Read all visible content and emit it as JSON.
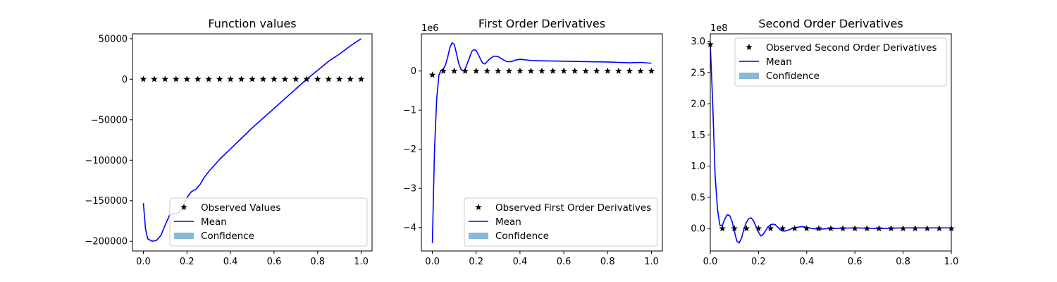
{
  "chart_data": [
    {
      "type": "line",
      "title": "Function values",
      "xlabel": "",
      "ylabel": "",
      "xlim": [
        -0.05,
        1.05
      ],
      "ylim": [
        -212000,
        56000
      ],
      "xticks": [
        0.0,
        0.2,
        0.4,
        0.6,
        0.8,
        1.0
      ],
      "xtick_labels": [
        "0.0",
        "0.2",
        "0.4",
        "0.6",
        "0.8",
        "1.0"
      ],
      "yticks": [
        50000,
        0,
        -50000,
        -100000,
        -150000,
        -200000
      ],
      "ytick_labels": [
        "50000",
        "0",
        "−50000",
        "−100000",
        "−150000",
        "−200000"
      ],
      "offset_label": "",
      "legend_position": "lower-right",
      "legend": [
        "Observed Values",
        "Mean",
        "Confidence"
      ],
      "series": [
        {
          "name": "Observed Values",
          "kind": "markers",
          "x": [
            0.0,
            0.05,
            0.1,
            0.15,
            0.2,
            0.25,
            0.3,
            0.35,
            0.4,
            0.45,
            0.5,
            0.55,
            0.6,
            0.65,
            0.7,
            0.75,
            0.8,
            0.85,
            0.9,
            0.95,
            1.0
          ],
          "y": [
            0,
            0,
            0,
            0,
            0,
            0,
            0,
            0,
            0,
            0,
            0,
            0,
            0,
            0,
            0,
            0,
            0,
            0,
            0,
            0,
            0
          ]
        },
        {
          "name": "Mean",
          "kind": "line",
          "x": [
            0.0,
            0.01,
            0.02,
            0.04,
            0.06,
            0.08,
            0.1,
            0.12,
            0.14,
            0.16,
            0.18,
            0.2,
            0.22,
            0.24,
            0.26,
            0.28,
            0.3,
            0.32,
            0.35,
            0.4,
            0.45,
            0.5,
            0.55,
            0.6,
            0.65,
            0.7,
            0.75,
            0.8,
            0.85,
            0.9,
            0.95,
            1.0
          ],
          "y": [
            -153000,
            -185000,
            -197000,
            -200000,
            -199000,
            -193000,
            -180000,
            -168000,
            -166000,
            -165000,
            -158000,
            -146000,
            -139000,
            -136000,
            -130000,
            -121000,
            -114000,
            -108000,
            -99000,
            -86000,
            -73000,
            -60000,
            -48000,
            -36000,
            -24000,
            -12000,
            0,
            11000,
            22000,
            31000,
            41000,
            50000
          ]
        }
      ]
    },
    {
      "type": "line",
      "title": "First Order Derivatives",
      "xlabel": "",
      "ylabel": "",
      "xlim": [
        -0.05,
        1.05
      ],
      "ylim": [
        -4.6,
        0.95
      ],
      "xticks": [
        0.0,
        0.2,
        0.4,
        0.6,
        0.8,
        1.0
      ],
      "xtick_labels": [
        "0.0",
        "0.2",
        "0.4",
        "0.6",
        "0.8",
        "1.0"
      ],
      "yticks": [
        0,
        -1,
        -2,
        -3,
        -4
      ],
      "ytick_labels": [
        "0",
        "−1",
        "−2",
        "−3",
        "−4"
      ],
      "offset_label": "1e6",
      "legend_position": "lower-right",
      "legend": [
        "Observed First Order Derivatives",
        "Mean",
        "Confidence"
      ],
      "series": [
        {
          "name": "Observed First Order Derivatives",
          "kind": "markers",
          "x": [
            0.0,
            0.05,
            0.1,
            0.15,
            0.2,
            0.25,
            0.3,
            0.35,
            0.4,
            0.45,
            0.5,
            0.55,
            0.6,
            0.65,
            0.7,
            0.75,
            0.8,
            0.85,
            0.9,
            0.95,
            1.0
          ],
          "y": [
            -0.1,
            0,
            0,
            0,
            0,
            0,
            0,
            0,
            0,
            0,
            0,
            0,
            0,
            0,
            0,
            0,
            0,
            0,
            0,
            0,
            0
          ]
        },
        {
          "name": "Mean",
          "kind": "line",
          "x": [
            0.0,
            0.01,
            0.02,
            0.03,
            0.04,
            0.05,
            0.06,
            0.07,
            0.08,
            0.09,
            0.1,
            0.11,
            0.12,
            0.13,
            0.14,
            0.15,
            0.16,
            0.17,
            0.18,
            0.19,
            0.2,
            0.21,
            0.22,
            0.23,
            0.24,
            0.26,
            0.28,
            0.3,
            0.32,
            0.34,
            0.36,
            0.38,
            0.4,
            0.45,
            0.5,
            0.6,
            0.7,
            0.8,
            0.85,
            0.9,
            0.95,
            1.0
          ],
          "y": [
            -4.4,
            -2.0,
            -0.7,
            -0.1,
            0.02,
            0.05,
            0.15,
            0.35,
            0.6,
            0.72,
            0.68,
            0.45,
            0.2,
            0.05,
            0.0,
            0.05,
            0.2,
            0.35,
            0.5,
            0.55,
            0.52,
            0.42,
            0.3,
            0.2,
            0.18,
            0.3,
            0.38,
            0.37,
            0.3,
            0.24,
            0.24,
            0.28,
            0.3,
            0.27,
            0.26,
            0.25,
            0.24,
            0.23,
            0.22,
            0.21,
            0.22,
            0.2
          ]
        }
      ]
    },
    {
      "type": "line",
      "title": "Second Order Derivatives",
      "xlabel": "",
      "ylabel": "",
      "xlim": [
        0.0,
        1.0
      ],
      "ylim": [
        -0.36,
        3.12
      ],
      "xticks": [
        0.0,
        0.2,
        0.4,
        0.6,
        0.8,
        1.0
      ],
      "xtick_labels": [
        "0.0",
        "0.2",
        "0.4",
        "0.6",
        "0.8",
        "1.0"
      ],
      "yticks": [
        3.0,
        2.5,
        2.0,
        1.5,
        1.0,
        0.5,
        0.0
      ],
      "ytick_labels": [
        "3.0",
        "2.5",
        "2.0",
        "1.5",
        "1.0",
        "0.5",
        "0.0"
      ],
      "offset_label": "1e8",
      "legend_position": "upper-right",
      "legend": [
        "Observed Second Order Derivatives",
        "Mean",
        "Confidence"
      ],
      "series": [
        {
          "name": "Observed Second Order Derivatives",
          "kind": "markers",
          "x": [
            0.0,
            0.05,
            0.1,
            0.15,
            0.2,
            0.25,
            0.3,
            0.35,
            0.4,
            0.45,
            0.5,
            0.55,
            0.6,
            0.65,
            0.7,
            0.75,
            0.8,
            0.85,
            0.9,
            0.95,
            1.0
          ],
          "y": [
            2.95,
            0,
            0,
            0,
            0,
            0,
            0,
            0,
            0,
            0,
            0,
            0,
            0,
            0,
            0,
            0,
            0,
            0,
            0,
            0,
            0
          ]
        },
        {
          "name": "Mean",
          "kind": "line",
          "x": [
            0.0,
            0.01,
            0.02,
            0.03,
            0.04,
            0.05,
            0.06,
            0.07,
            0.08,
            0.09,
            0.1,
            0.11,
            0.12,
            0.13,
            0.14,
            0.15,
            0.16,
            0.17,
            0.18,
            0.19,
            0.2,
            0.21,
            0.22,
            0.23,
            0.24,
            0.25,
            0.26,
            0.27,
            0.28,
            0.29,
            0.3,
            0.31,
            0.32,
            0.34,
            0.36,
            0.38,
            0.4,
            0.42,
            0.45,
            0.5,
            0.6,
            0.7,
            0.8,
            0.9,
            1.0
          ],
          "y": [
            2.95,
            2.0,
            0.85,
            0.3,
            0.05,
            0.05,
            0.15,
            0.22,
            0.21,
            0.12,
            -0.05,
            -0.2,
            -0.23,
            -0.15,
            0.0,
            0.1,
            0.16,
            0.17,
            0.12,
            0.03,
            -0.06,
            -0.12,
            -0.09,
            -0.03,
            0.03,
            0.06,
            0.07,
            0.06,
            0.02,
            -0.02,
            -0.04,
            -0.04,
            -0.03,
            0.0,
            0.02,
            0.03,
            0.02,
            0.0,
            -0.01,
            0.0,
            0.01,
            0.0,
            0.01,
            0.01,
            0.01
          ]
        }
      ]
    }
  ],
  "colors": {
    "mean_line": "#0000ff",
    "markers": "#000000",
    "confidence": "#8ab8d8",
    "axes": "#000000",
    "background": "#ffffff"
  }
}
